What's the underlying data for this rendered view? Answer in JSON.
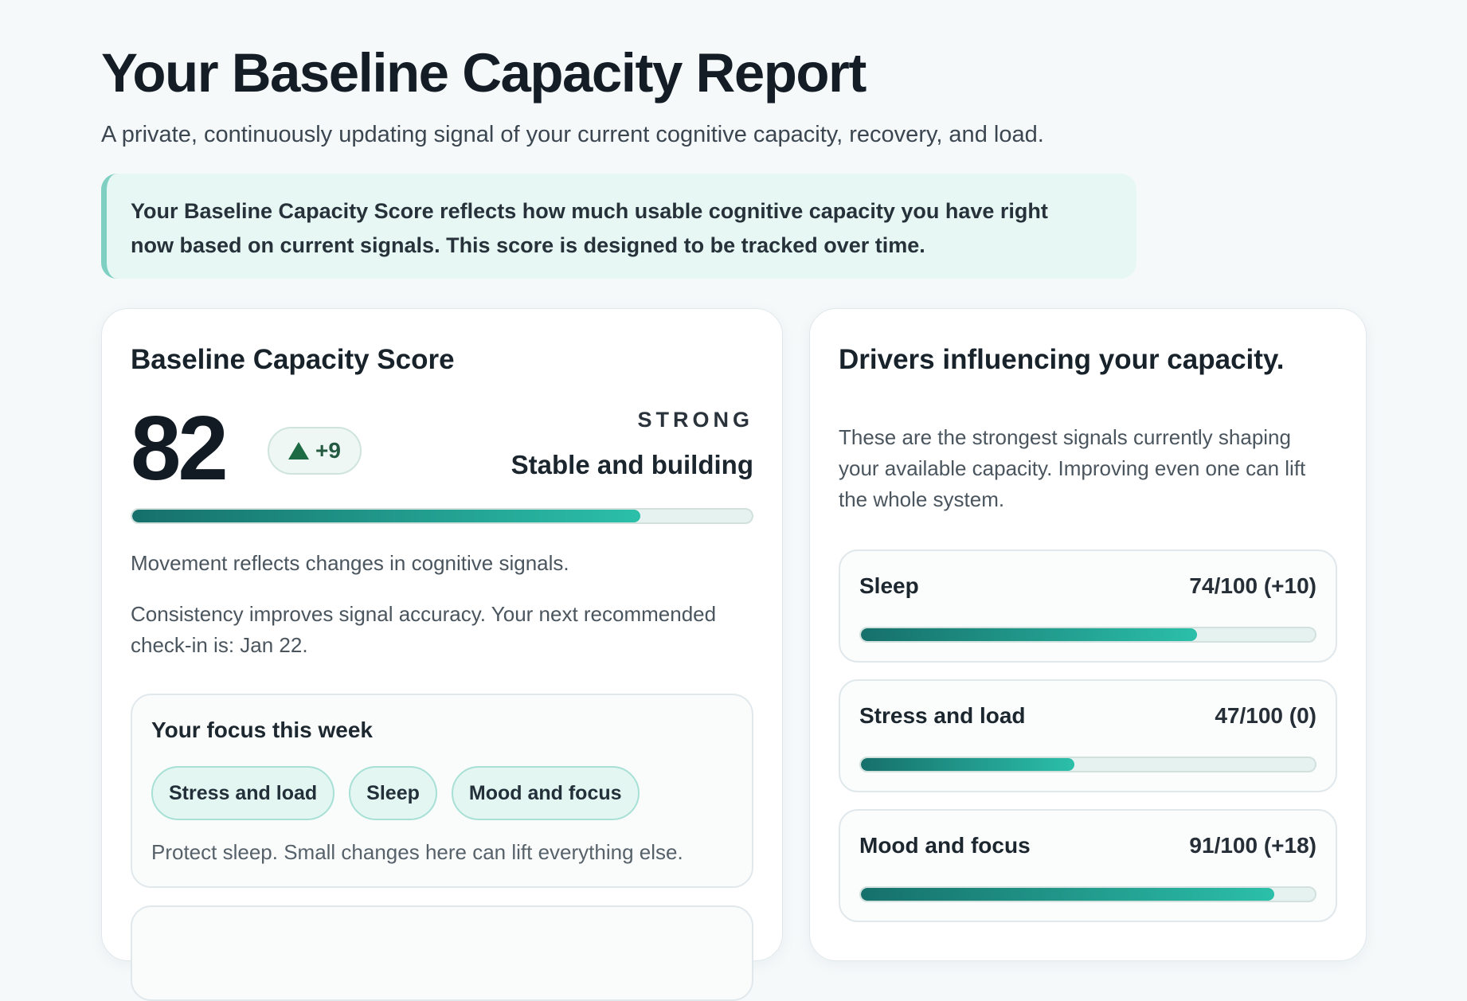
{
  "header": {
    "title": "Your Baseline Capacity Report",
    "subtitle": "A private, continuously updating signal of your current cognitive capacity, recovery, and load."
  },
  "callout": {
    "line1": "Your Baseline Capacity Score reflects how much usable cognitive capacity you have right",
    "line2": "now based on current signals. This score is designed to be tracked over time."
  },
  "score_card": {
    "title": "Baseline Capacity Score",
    "score": "82",
    "score_max": 100,
    "delta": "+9",
    "status_label": "STRONG",
    "status_desc": "Stable and building",
    "note1": "Movement reflects changes in cognitive signals.",
    "note2_line1": "Consistency improves signal accuracy. Your next recommended",
    "note2_line2": "check-in is: Jan 22.",
    "focus": {
      "title": "Your focus this week",
      "chips": [
        "Stress and load",
        "Sleep",
        "Mood and focus"
      ],
      "tip": "Protect sleep. Small changes here can lift everything else."
    }
  },
  "drivers_card": {
    "title": "Drivers influencing your capacity.",
    "desc_line1": "These are the strongest signals currently shaping",
    "desc_line2": "your available capacity. Improving even one can lift",
    "desc_line3": "the whole system.",
    "items": [
      {
        "name": "Sleep",
        "value": "74/100 (+10)",
        "score": 74
      },
      {
        "name": "Stress and load",
        "value": "47/100 (0)",
        "score": 47
      },
      {
        "name": "Mood and focus",
        "value": "91/100 (+18)",
        "score": 91
      }
    ]
  },
  "colors": {
    "accent": "#2bbfa9",
    "accent_dark": "#16706b",
    "background": "#f5f9fa",
    "up_arrow": "#1d6b45"
  },
  "icons": {
    "delta": "up-triangle-icon"
  }
}
